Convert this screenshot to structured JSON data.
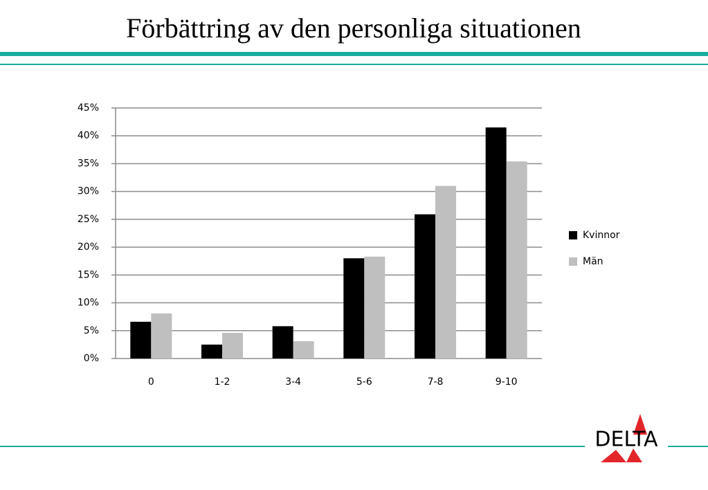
{
  "chart_data": {
    "type": "bar",
    "title": "Förbättring av den personliga situationen",
    "categories": [
      "0",
      "1-2",
      "3-4",
      "5-6",
      "7-8",
      "9-10"
    ],
    "series": [
      {
        "name": "Kvinnor",
        "color": "#000000",
        "values": [
          6.6,
          2.5,
          5.8,
          18.0,
          25.9,
          41.5
        ]
      },
      {
        "name": "Män",
        "color": "#bfbfbf",
        "values": [
          8.1,
          4.6,
          3.1,
          18.3,
          31.0,
          35.4
        ]
      }
    ],
    "ylim": [
      0,
      45
    ],
    "yticks": [
      {
        "value": 0,
        "label": "0%"
      },
      {
        "value": 5,
        "label": "5%"
      },
      {
        "value": 10,
        "label": "10%"
      },
      {
        "value": 15,
        "label": "15%"
      },
      {
        "value": 20,
        "label": "20%"
      },
      {
        "value": 25,
        "label": "25%"
      },
      {
        "value": 30,
        "label": "30%"
      },
      {
        "value": 35,
        "label": "35%"
      },
      {
        "value": 40,
        "label": "40%"
      },
      {
        "value": 45,
        "label": "45%"
      }
    ],
    "grid": true,
    "legend": "right"
  },
  "logo": "DELTA"
}
